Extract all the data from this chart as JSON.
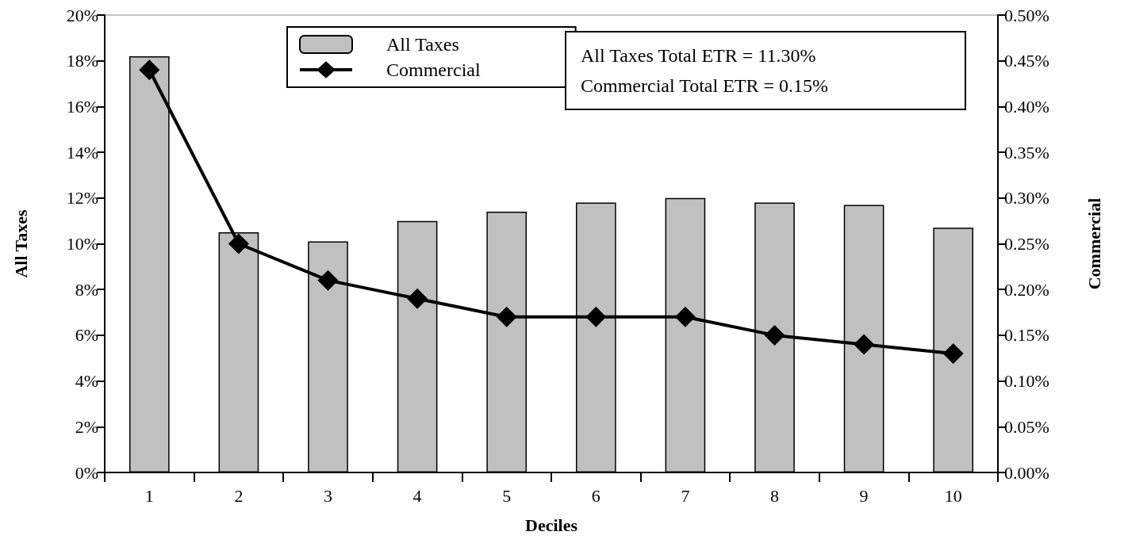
{
  "chart_data": {
    "type": "bar",
    "xlabel": "Deciles",
    "ylabel": "All Taxes",
    "y2label": "Commercial",
    "categories": [
      "1",
      "2",
      "3",
      "4",
      "5",
      "6",
      "7",
      "8",
      "9",
      "10"
    ],
    "series": [
      {
        "name": "All Taxes",
        "color": "#c0c0c0",
        "values": [
          18.2,
          10.5,
          10.1,
          11.0,
          11.4,
          11.8,
          12.0,
          11.8,
          11.7,
          10.7
        ]
      },
      {
        "name": "Commercial",
        "type": "line",
        "axis": "y2",
        "color": "#000000",
        "marker": "diamond",
        "values": [
          0.44,
          0.25,
          0.21,
          0.19,
          0.17,
          0.17,
          0.17,
          0.15,
          0.14,
          0.13
        ]
      }
    ],
    "ylim": [
      0,
      20
    ],
    "yticks": [
      {
        "value": 0,
        "label": "0%"
      },
      {
        "value": 2,
        "label": "2%"
      },
      {
        "value": 4,
        "label": "4%"
      },
      {
        "value": 6,
        "label": "6%"
      },
      {
        "value": 8,
        "label": "8%"
      },
      {
        "value": 10,
        "label": "10%"
      },
      {
        "value": 12,
        "label": "12%"
      },
      {
        "value": 14,
        "label": "14%"
      },
      {
        "value": 16,
        "label": "16%"
      },
      {
        "value": 18,
        "label": "18%"
      },
      {
        "value": 20,
        "label": "20%"
      }
    ],
    "y2lim": [
      0,
      0.5
    ],
    "y2ticks": [
      {
        "value": 0,
        "label": "0.00%"
      },
      {
        "value": 0.05,
        "label": "0.05%"
      },
      {
        "value": 0.1,
        "label": "0.10%"
      },
      {
        "value": 0.15,
        "label": "0.15%"
      },
      {
        "value": 0.2,
        "label": "0.20%"
      },
      {
        "value": 0.25,
        "label": "0.25%"
      },
      {
        "value": 0.3,
        "label": "0.30%"
      },
      {
        "value": 0.35,
        "label": "0.35%"
      },
      {
        "value": 0.4,
        "label": "0.40%"
      },
      {
        "value": 0.45,
        "label": "0.45%"
      },
      {
        "value": 0.5,
        "label": "0.50%"
      }
    ],
    "annotations": [
      "All Taxes Total ETR = 11.30%",
      "Commercial Total ETR = 0.15%"
    ],
    "legend": "top",
    "grid": false
  }
}
